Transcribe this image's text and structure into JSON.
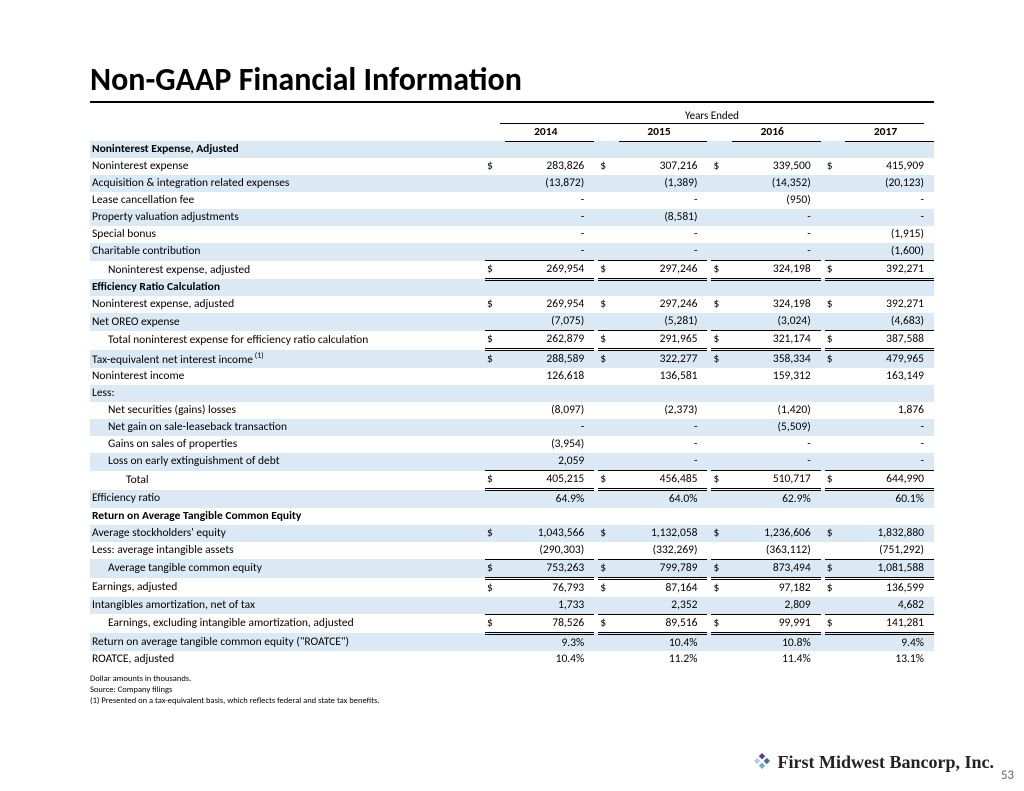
{
  "title": "Non-GAAP Financial Information",
  "years_header": "Years Ended",
  "columns": [
    "2014",
    "2015",
    "2016",
    "2017"
  ],
  "colors": {
    "shade": "#dbe9f4",
    "text": "#000000",
    "background": "#ffffff"
  },
  "rows": [
    {
      "label": "Noninterest Expense, Adjusted",
      "bold": true,
      "shade": true
    },
    {
      "label": "Noninterest expense",
      "dollar": true,
      "v": [
        "283,826",
        "307,216",
        "339,500",
        "415,909"
      ]
    },
    {
      "label": "Acquisition & integration related expenses",
      "shade": true,
      "v": [
        "(13,872)",
        "(1,389)",
        "(14,352)",
        "(20,123)"
      ]
    },
    {
      "label": "Lease cancellation fee",
      "v": [
        "-",
        "-",
        "(950)",
        "-"
      ]
    },
    {
      "label": "Property valuation adjustments",
      "shade": true,
      "v": [
        "-",
        "(8,581)",
        "-",
        "-"
      ]
    },
    {
      "label": "Special bonus",
      "v": [
        "-",
        "-",
        "-",
        "(1,915)"
      ]
    },
    {
      "label": "Charitable contribution",
      "shade": true,
      "underline": true,
      "v": [
        "-",
        "-",
        "-",
        "(1,600)"
      ]
    },
    {
      "label": "Noninterest expense, adjusted",
      "indent": 1,
      "dollar": true,
      "double": true,
      "v": [
        "269,954",
        "297,246",
        "324,198",
        "392,271"
      ]
    },
    {
      "label": "Efficiency Ratio Calculation",
      "bold": true,
      "shade": true
    },
    {
      "label": "Noninterest expense, adjusted",
      "dollar": true,
      "v": [
        "269,954",
        "297,246",
        "324,198",
        "392,271"
      ]
    },
    {
      "label": "Net OREO expense",
      "shade": true,
      "underline": true,
      "v": [
        "(7,075)",
        "(5,281)",
        "(3,024)",
        "(4,683)"
      ]
    },
    {
      "label": "Total noninterest expense for efficiency ratio calculation",
      "indent": 1,
      "dollar": true,
      "double": true,
      "v": [
        "262,879",
        "291,965",
        "321,174",
        "387,588"
      ]
    },
    {
      "label": "Tax-equivalent net interest income",
      "sup": "(1)",
      "shade": true,
      "dollar": true,
      "topline": true,
      "v": [
        "288,589",
        "322,277",
        "358,334",
        "479,965"
      ]
    },
    {
      "label": "Noninterest income",
      "v": [
        "126,618",
        "136,581",
        "159,312",
        "163,149"
      ]
    },
    {
      "label": "Less:",
      "shade": true
    },
    {
      "label": "Net securities (gains) losses",
      "indent": 1,
      "v": [
        "(8,097)",
        "(2,373)",
        "(1,420)",
        "1,876"
      ]
    },
    {
      "label": "Net gain on sale-leaseback transaction",
      "indent": 1,
      "shade": true,
      "v": [
        "-",
        "-",
        "(5,509)",
        "-"
      ]
    },
    {
      "label": "Gains on sales of properties",
      "indent": 1,
      "v": [
        "(3,954)",
        "-",
        "-",
        "-"
      ]
    },
    {
      "label": "Loss on early extinguishment of debt",
      "indent": 1,
      "shade": true,
      "underline": true,
      "v": [
        "2,059",
        "-",
        "-",
        "-"
      ]
    },
    {
      "label": "Total",
      "indent": 2,
      "dollar": true,
      "double": true,
      "v": [
        "405,215",
        "456,485",
        "510,717",
        "644,990"
      ]
    },
    {
      "label": "Efficiency ratio",
      "shade": true,
      "v": [
        "64.9%",
        "64.0%",
        "62.9%",
        "60.1%"
      ]
    },
    {
      "label": "Return on Average Tangible Common Equity",
      "bold": true
    },
    {
      "label": "Average stockholders' equity",
      "shade": true,
      "dollar": true,
      "v": [
        "1,043,566",
        "1,132,058",
        "1,236,606",
        "1,832,880"
      ]
    },
    {
      "label": "Less: average intangible assets",
      "underline": true,
      "v": [
        "(290,303)",
        "(332,269)",
        "(363,112)",
        "(751,292)"
      ]
    },
    {
      "label": "Average tangible common equity",
      "indent": 1,
      "shade": true,
      "dollar": true,
      "double": true,
      "v": [
        "753,263",
        "799,789",
        "873,494",
        "1,081,588"
      ]
    },
    {
      "label": "Earnings, adjusted",
      "dollar": true,
      "topline": true,
      "v": [
        "76,793",
        "87,164",
        "97,182",
        "136,599"
      ]
    },
    {
      "label": "Intangibles amortization, net of tax",
      "shade": true,
      "underline": true,
      "v": [
        "1,733",
        "2,352",
        "2,809",
        "4,682"
      ]
    },
    {
      "label": "Earnings, excluding intangible amortization, adjusted",
      "indent": 1,
      "dollar": true,
      "double": true,
      "v": [
        "78,526",
        "89,516",
        "99,991",
        "141,281"
      ]
    },
    {
      "label": "Return on average tangible common equity (\"ROATCE\")",
      "shade": true,
      "v": [
        "9.3%",
        "10.4%",
        "10.8%",
        "9.4%"
      ]
    },
    {
      "label": "ROATCE, adjusted",
      "v": [
        "10.4%",
        "11.2%",
        "11.4%",
        "13.1%"
      ]
    }
  ],
  "footnotes": [
    "Dollar amounts in thousands.",
    "Source: Company filings",
    "(1) Presented on a tax-equivalent basis, which reflects federal and state tax benefits."
  ],
  "company": "First Midwest Bancorp, Inc.",
  "page_number": "53",
  "logo_colors": [
    "#5b3a8e",
    "#3a6fa8",
    "#7aa7d0",
    "#b2cde6"
  ]
}
